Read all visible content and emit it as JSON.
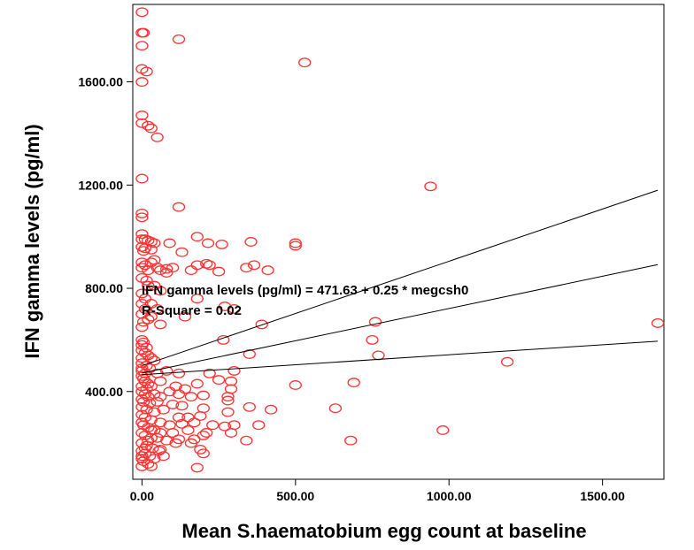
{
  "chart_data": {
    "type": "scatter",
    "xlabel": "Mean S.haematobium egg count at baseline",
    "ylabel": "IFN gamma levels (pg/ml)",
    "xlim": [
      -30,
      1700
    ],
    "ylim": [
      60,
      1900
    ],
    "xticks": [
      0,
      500,
      1000,
      1500
    ],
    "xtick_labels": [
      "0.00",
      "500.00",
      "1000.00",
      "1500.00"
    ],
    "yticks": [
      400,
      800,
      1200,
      1600
    ],
    "ytick_labels": [
      "400.00",
      "800.00",
      "1200.00",
      "1600.00"
    ],
    "grid": false,
    "marker_color": "#ff3333",
    "annotations": [
      "IFN gamma levels (pg/ml) = 471.63 + 0.25 * megcsh0",
      "R-Square = 0.02"
    ],
    "fit_line": {
      "intercept": 471.63,
      "slope": 0.25,
      "x_range": [
        0,
        1680
      ]
    },
    "confidence_band": {
      "upper": [
        [
          0,
          500
        ],
        [
          1680,
          1180
        ]
      ],
      "lower": [
        [
          0,
          465
        ],
        [
          1680,
          595
        ]
      ]
    },
    "points": [
      [
        0,
        1870
      ],
      [
        0,
        1790
      ],
      [
        5,
        1790
      ],
      [
        0,
        1740
      ],
      [
        0,
        1650
      ],
      [
        15,
        1640
      ],
      [
        0,
        1600
      ],
      [
        0,
        1470
      ],
      [
        0,
        1440
      ],
      [
        20,
        1430
      ],
      [
        30,
        1420
      ],
      [
        50,
        1385
      ],
      [
        120,
        1765
      ],
      [
        530,
        1675
      ],
      [
        0,
        1225
      ],
      [
        0,
        1090
      ],
      [
        0,
        1075
      ],
      [
        120,
        1115
      ],
      [
        940,
        1195
      ],
      [
        0,
        1010
      ],
      [
        0,
        990
      ],
      [
        10,
        990
      ],
      [
        20,
        985
      ],
      [
        30,
        980
      ],
      [
        40,
        975
      ],
      [
        0,
        960
      ],
      [
        10,
        955
      ],
      [
        30,
        950
      ],
      [
        90,
        975
      ],
      [
        180,
        1000
      ],
      [
        215,
        975
      ],
      [
        260,
        970
      ],
      [
        355,
        980
      ],
      [
        500,
        975
      ],
      [
        500,
        965
      ],
      [
        5,
        945
      ],
      [
        0,
        900
      ],
      [
        0,
        880
      ],
      [
        10,
        890
      ],
      [
        20,
        870
      ],
      [
        30,
        900
      ],
      [
        40,
        910
      ],
      [
        50,
        880
      ],
      [
        60,
        870
      ],
      [
        80,
        875
      ],
      [
        100,
        880
      ],
      [
        130,
        940
      ],
      [
        160,
        870
      ],
      [
        180,
        890
      ],
      [
        210,
        895
      ],
      [
        220,
        890
      ],
      [
        340,
        880
      ],
      [
        365,
        890
      ],
      [
        410,
        870
      ],
      [
        250,
        865
      ],
      [
        80,
        860
      ],
      [
        0,
        840
      ],
      [
        15,
        830
      ],
      [
        20,
        810
      ],
      [
        40,
        810
      ],
      [
        60,
        790
      ],
      [
        0,
        780
      ],
      [
        10,
        760
      ],
      [
        30,
        740
      ],
      [
        0,
        740
      ],
      [
        10,
        720
      ],
      [
        50,
        720
      ],
      [
        180,
        760
      ],
      [
        270,
        730
      ],
      [
        140,
        690
      ],
      [
        0,
        700
      ],
      [
        30,
        690
      ],
      [
        20,
        680
      ],
      [
        5,
        670
      ],
      [
        60,
        660
      ],
      [
        0,
        650
      ],
      [
        760,
        670
      ],
      [
        1680,
        665
      ],
      [
        390,
        660
      ],
      [
        750,
        600
      ],
      [
        265,
        600
      ],
      [
        300,
        720
      ],
      [
        0,
        600
      ],
      [
        5,
        590
      ],
      [
        0,
        580
      ],
      [
        15,
        570
      ],
      [
        0,
        560
      ],
      [
        10,
        550
      ],
      [
        20,
        540
      ],
      [
        0,
        530
      ],
      [
        30,
        530
      ],
      [
        40,
        520
      ],
      [
        0,
        510
      ],
      [
        15,
        500
      ],
      [
        0,
        490
      ],
      [
        25,
        490
      ],
      [
        0,
        480
      ],
      [
        10,
        470
      ],
      [
        50,
        470
      ],
      [
        80,
        480
      ],
      [
        120,
        470
      ],
      [
        220,
        470
      ],
      [
        300,
        480
      ],
      [
        350,
        545
      ],
      [
        770,
        540
      ],
      [
        1190,
        515
      ],
      [
        0,
        460
      ],
      [
        5,
        450
      ],
      [
        10,
        440
      ],
      [
        20,
        430
      ],
      [
        0,
        420
      ],
      [
        15,
        410
      ],
      [
        30,
        420
      ],
      [
        60,
        440
      ],
      [
        110,
        420
      ],
      [
        140,
        410
      ],
      [
        180,
        430
      ],
      [
        250,
        445
      ],
      [
        290,
        440
      ],
      [
        290,
        410
      ],
      [
        500,
        425
      ],
      [
        690,
        435
      ],
      [
        0,
        400
      ],
      [
        10,
        390
      ],
      [
        20,
        380
      ],
      [
        40,
        390
      ],
      [
        60,
        380
      ],
      [
        90,
        400
      ],
      [
        120,
        390
      ],
      [
        160,
        380
      ],
      [
        200,
        385
      ],
      [
        280,
        380
      ],
      [
        0,
        370
      ],
      [
        5,
        360
      ],
      [
        25,
        355
      ],
      [
        50,
        360
      ],
      [
        100,
        350
      ],
      [
        130,
        345
      ],
      [
        200,
        335
      ],
      [
        280,
        365
      ],
      [
        0,
        340
      ],
      [
        15,
        330
      ],
      [
        40,
        320
      ],
      [
        70,
        330
      ],
      [
        120,
        300
      ],
      [
        150,
        300
      ],
      [
        190,
        305
      ],
      [
        280,
        320
      ],
      [
        350,
        340
      ],
      [
        420,
        330
      ],
      [
        0,
        310
      ],
      [
        10,
        300
      ],
      [
        30,
        290
      ],
      [
        60,
        280
      ],
      [
        90,
        270
      ],
      [
        130,
        275
      ],
      [
        170,
        280
      ],
      [
        230,
        270
      ],
      [
        270,
        265
      ],
      [
        300,
        270
      ],
      [
        630,
        335
      ],
      [
        0,
        280
      ],
      [
        5,
        270
      ],
      [
        20,
        260
      ],
      [
        40,
        250
      ],
      [
        60,
        240
      ],
      [
        100,
        240
      ],
      [
        150,
        250
      ],
      [
        210,
        240
      ],
      [
        290,
        240
      ],
      [
        380,
        270
      ],
      [
        0,
        240
      ],
      [
        10,
        230
      ],
      [
        30,
        220
      ],
      [
        50,
        220
      ],
      [
        80,
        210
      ],
      [
        120,
        215
      ],
      [
        170,
        215
      ],
      [
        200,
        230
      ],
      [
        340,
        210
      ],
      [
        0,
        200
      ],
      [
        15,
        190
      ],
      [
        35,
        180
      ],
      [
        60,
        175
      ],
      [
        110,
        200
      ],
      [
        160,
        200
      ],
      [
        190,
        175
      ],
      [
        680,
        210
      ],
      [
        980,
        250
      ],
      [
        0,
        170
      ],
      [
        10,
        160
      ],
      [
        25,
        150
      ],
      [
        40,
        140
      ],
      [
        70,
        150
      ],
      [
        200,
        160
      ],
      [
        0,
        140
      ],
      [
        5,
        130
      ],
      [
        20,
        120
      ],
      [
        0,
        110
      ],
      [
        30,
        110
      ],
      [
        180,
        105
      ],
      [
        55,
        170
      ],
      [
        0,
        150
      ],
      [
        10,
        180
      ],
      [
        20,
        210
      ],
      [
        30,
        250
      ]
    ]
  }
}
